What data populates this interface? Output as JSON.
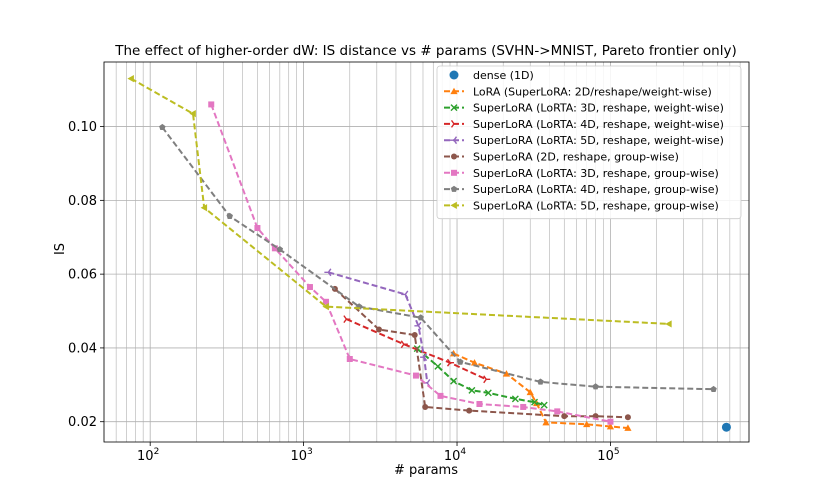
{
  "chart_data": {
    "type": "line",
    "title": "The effect of higher-order dW: IS distance vs # params (SVHN->MNIST, Pareto frontier only)",
    "xlabel": "# params",
    "ylabel": "IS",
    "xscale": "log",
    "xlim": [
      50,
      800000
    ],
    "ylim": [
      0.0145,
      0.1175
    ],
    "yticks": [
      0.02,
      0.04,
      0.06,
      0.08,
      0.1
    ],
    "ytick_labels": [
      "0.02",
      "0.04",
      "0.06",
      "0.08",
      "0.10"
    ],
    "xticks": [
      {
        "value": 100,
        "base": "10",
        "exp": "2"
      },
      {
        "value": 1000,
        "base": "10",
        "exp": "3"
      },
      {
        "value": 10000,
        "base": "10",
        "exp": "4"
      },
      {
        "value": 100000,
        "base": "10",
        "exp": "5"
      }
    ],
    "grid": true,
    "legend_position": "top-right",
    "series": [
      {
        "name": "dense (1D)",
        "color": "#1f77b4",
        "marker": "circle",
        "line": false,
        "x": [
          570000
        ],
        "y": [
          0.0185
        ]
      },
      {
        "name": "LoRA (SuperLoRA: 2D/reshape/weight-wise)",
        "color": "#ff7f0e",
        "marker": "triangle-up",
        "line": true,
        "x": [
          9500,
          13000,
          21000,
          30000,
          33000,
          38000,
          70000,
          100000,
          130000
        ],
        "y": [
          0.0385,
          0.036,
          0.033,
          0.028,
          0.025,
          0.0198,
          0.0193,
          0.0187,
          0.0183
        ]
      },
      {
        "name": "SuperLoRA (LoRTA: 3D, reshape, weight-wise)",
        "color": "#2ca02c",
        "marker": "x",
        "line": true,
        "x": [
          5500,
          7500,
          9500,
          12500,
          16000,
          24000,
          32000,
          37000
        ],
        "y": [
          0.0398,
          0.035,
          0.031,
          0.0285,
          0.0278,
          0.0262,
          0.0253,
          0.0245
        ]
      },
      {
        "name": "SuperLoRA (LoRTA: 4D, reshape, weight-wise)",
        "color": "#d62728",
        "marker": "tri-right",
        "line": true,
        "x": [
          1900,
          4500,
          9000,
          15500
        ],
        "y": [
          0.0478,
          0.041,
          0.036,
          0.0315
        ]
      },
      {
        "name": "SuperLoRA (LoRTA: 5D, reshape, weight-wise)",
        "color": "#9467bd",
        "marker": "tri-left",
        "line": true,
        "x": [
          1450,
          4600,
          5600,
          6100,
          6400
        ],
        "y": [
          0.0605,
          0.0545,
          0.046,
          0.0375,
          0.0305
        ]
      },
      {
        "name": "SuperLoRA (2D, reshape, group-wise)",
        "color": "#8c564b",
        "marker": "circle",
        "line": true,
        "x": [
          1600,
          3100,
          5300,
          6200,
          12000,
          50000,
          80000,
          130000
        ],
        "y": [
          0.056,
          0.045,
          0.0435,
          0.024,
          0.023,
          0.0215,
          0.0215,
          0.0212
        ]
      },
      {
        "name": "SuperLoRA (LoRTA: 3D, reshape, group-wise)",
        "color": "#e377c2",
        "marker": "square",
        "line": true,
        "x": [
          250,
          500,
          650,
          1100,
          1400,
          2000,
          5400,
          7800,
          14000,
          27000,
          45000,
          100000
        ],
        "y": [
          0.106,
          0.0725,
          0.067,
          0.0565,
          0.0525,
          0.037,
          0.0325,
          0.027,
          0.0248,
          0.024,
          0.0228,
          0.02
        ]
      },
      {
        "name": "SuperLoRA (LoRTA: 4D, reshape, group-wise)",
        "color": "#7f7f7f",
        "marker": "pentagon",
        "line": true,
        "x": [
          120,
          330,
          700,
          2300,
          5800,
          10500,
          35000,
          80000,
          470000
        ],
        "y": [
          0.0998,
          0.0757,
          0.0667,
          0.0512,
          0.0482,
          0.0362,
          0.0308,
          0.0295,
          0.0288
        ]
      },
      {
        "name": "SuperLoRA (LoRTA: 5D, reshape, group-wise)",
        "color": "#bcbd22",
        "marker": "tri-left-filled",
        "line": true,
        "x": [
          75,
          190,
          225,
          1400,
          240000
        ],
        "y": [
          0.113,
          0.1035,
          0.078,
          0.0512,
          0.0465
        ]
      }
    ]
  }
}
